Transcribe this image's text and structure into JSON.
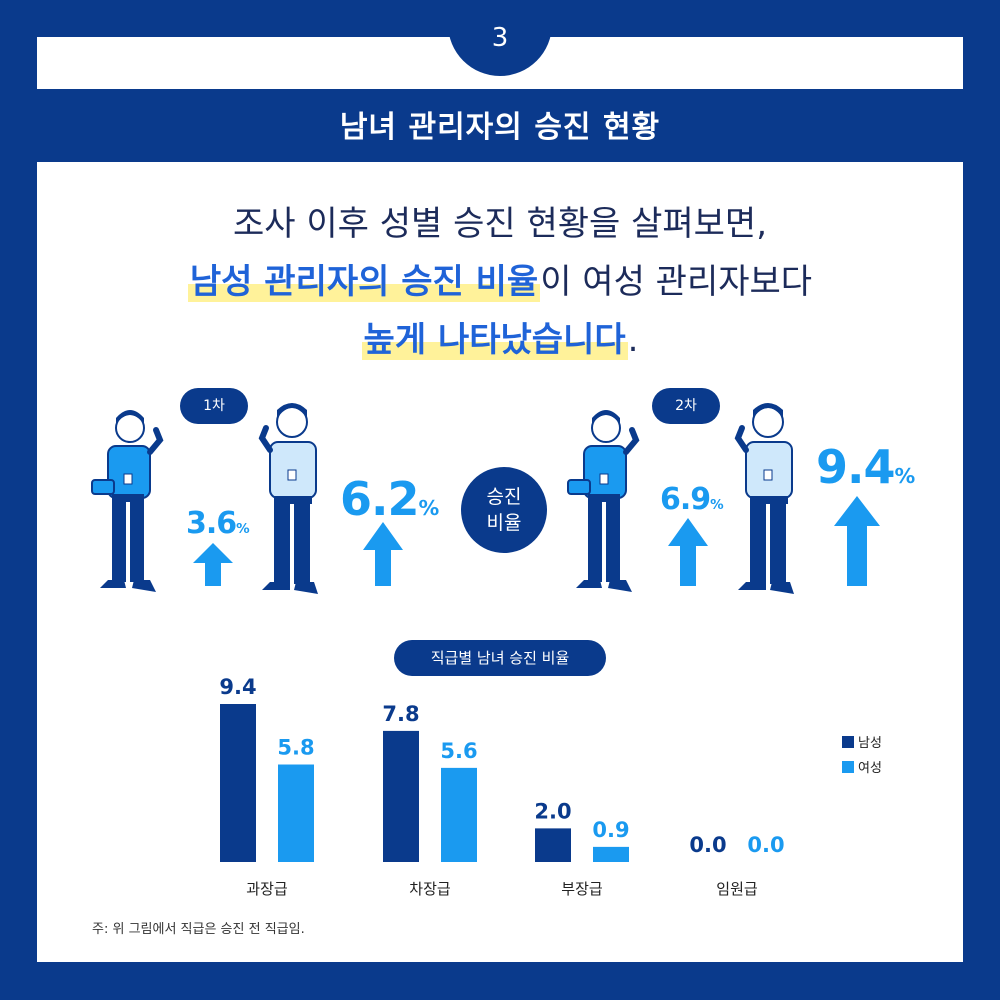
{
  "page_number": "3",
  "title": "남녀 관리자의 승진 현황",
  "headline": {
    "line1": "조사 이후 성별 승진 현황을 살펴보면,",
    "line2_highlight": "남성 관리자의 승진 비율",
    "line2_rest": "이 여성 관리자보다",
    "line3_highlight": "높게 나타났습니다",
    "line3_rest": "."
  },
  "rounds": [
    {
      "label": "1차",
      "female": "3.6",
      "male": "6.2"
    },
    {
      "label": "2차",
      "female": "6.9",
      "male": "9.4"
    }
  ],
  "percent_unit": "%",
  "center_label_line1": "승진",
  "center_label_line2": "비율",
  "chart_title": "직급별 남녀 승진 비율",
  "chart_data": {
    "type": "bar",
    "categories": [
      "과장급",
      "차장급",
      "부장급",
      "임원급"
    ],
    "series": [
      {
        "name": "남성",
        "values": [
          9.4,
          7.8,
          2.0,
          0.0
        ],
        "color": "#0a3a8c"
      },
      {
        "name": "여성",
        "values": [
          5.8,
          5.6,
          0.9,
          0.0
        ],
        "color": "#1a9af0"
      }
    ],
    "value_labels": {
      "남성": [
        "9.4",
        "7.8",
        "2.0",
        "0.0"
      ],
      "여성": [
        "5.8",
        "5.6",
        "0.9",
        "0.0"
      ]
    },
    "title": "직급별 남녀 승진 비율",
    "ylim": [
      0,
      9.4
    ],
    "legend": "right",
    "grid": false
  },
  "note": "주: 위 그림에서 직급은 승진 전 직급임.",
  "colors": {
    "navy": "#0a3a8c",
    "sky": "#1a9af0",
    "highlight": "#fff29a"
  }
}
